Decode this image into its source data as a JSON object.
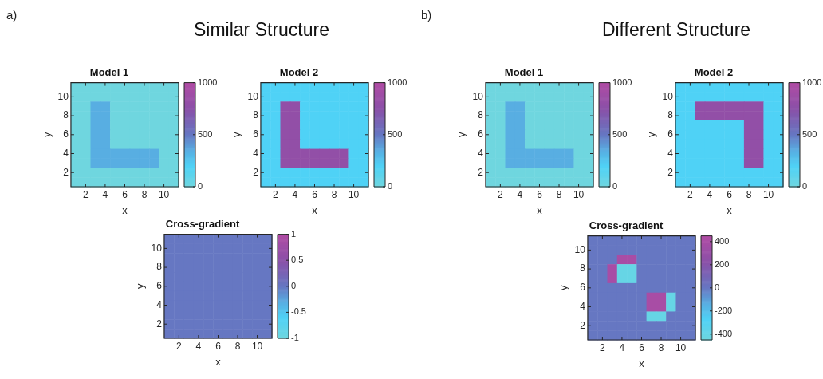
{
  "chart_data": [
    {
      "type": "heatmap",
      "title": "Model 1",
      "xlabel": "x",
      "ylabel": "y",
      "annotations": [
        "a)",
        "Similar Structure"
      ],
      "x": [
        1,
        2,
        3,
        4,
        5,
        6,
        7,
        8,
        9,
        10,
        11
      ],
      "xlim": [
        0.5,
        11.5
      ],
      "xticks": [
        2,
        4,
        6,
        8,
        10
      ],
      "ylim": [
        0.5,
        11.5
      ],
      "yticks": [
        2,
        4,
        6,
        8,
        10
      ],
      "clim": [
        0,
        1000
      ],
      "cticks": [
        0,
        500,
        1000
      ],
      "cells": [
        [
          0,
          0,
          0,
          0,
          0,
          0,
          0,
          0,
          0,
          0,
          0
        ],
        [
          0,
          0,
          0,
          0,
          0,
          0,
          0,
          0,
          0,
          0,
          0
        ],
        [
          0,
          0,
          350,
          350,
          0,
          0,
          0,
          0,
          0,
          0,
          0
        ],
        [
          0,
          0,
          350,
          350,
          0,
          0,
          0,
          0,
          0,
          0,
          0
        ],
        [
          0,
          0,
          350,
          350,
          0,
          0,
          0,
          0,
          0,
          0,
          0
        ],
        [
          0,
          0,
          350,
          350,
          0,
          0,
          0,
          0,
          0,
          0,
          0
        ],
        [
          0,
          0,
          350,
          350,
          0,
          0,
          0,
          0,
          0,
          0,
          0
        ],
        [
          0,
          0,
          350,
          350,
          350,
          350,
          350,
          350,
          350,
          0,
          0
        ],
        [
          0,
          0,
          350,
          350,
          350,
          350,
          350,
          350,
          350,
          0,
          0
        ],
        [
          0,
          0,
          0,
          0,
          0,
          0,
          0,
          0,
          0,
          0,
          0
        ],
        [
          0,
          0,
          0,
          0,
          0,
          0,
          0,
          0,
          0,
          0,
          0
        ]
      ]
    },
    {
      "type": "heatmap",
      "title": "Model 2",
      "xlabel": "x",
      "ylabel": "y",
      "x": [
        1,
        2,
        3,
        4,
        5,
        6,
        7,
        8,
        9,
        10,
        11
      ],
      "xlim": [
        0.5,
        11.5
      ],
      "xticks": [
        2,
        4,
        6,
        8,
        10
      ],
      "ylim": [
        0.5,
        11.5
      ],
      "yticks": [
        2,
        4,
        6,
        8,
        10
      ],
      "clim": [
        0,
        1000
      ],
      "cticks": [
        0,
        500,
        1000
      ],
      "cells": [
        [
          200,
          200,
          200,
          200,
          200,
          200,
          200,
          200,
          200,
          200,
          200
        ],
        [
          200,
          200,
          200,
          200,
          200,
          200,
          200,
          200,
          200,
          200,
          200
        ],
        [
          200,
          200,
          800,
          800,
          200,
          200,
          200,
          200,
          200,
          200,
          200
        ],
        [
          200,
          200,
          800,
          800,
          200,
          200,
          200,
          200,
          200,
          200,
          200
        ],
        [
          200,
          200,
          800,
          800,
          200,
          200,
          200,
          200,
          200,
          200,
          200
        ],
        [
          200,
          200,
          800,
          800,
          200,
          200,
          200,
          200,
          200,
          200,
          200
        ],
        [
          200,
          200,
          800,
          800,
          200,
          200,
          200,
          200,
          200,
          200,
          200
        ],
        [
          200,
          200,
          800,
          800,
          800,
          800,
          800,
          800,
          800,
          200,
          200
        ],
        [
          200,
          200,
          800,
          800,
          800,
          800,
          800,
          800,
          800,
          200,
          200
        ],
        [
          200,
          200,
          200,
          200,
          200,
          200,
          200,
          200,
          200,
          200,
          200
        ],
        [
          200,
          200,
          200,
          200,
          200,
          200,
          200,
          200,
          200,
          200,
          200
        ]
      ]
    },
    {
      "type": "heatmap",
      "title": "Cross-gradient",
      "xlabel": "x",
      "ylabel": "y",
      "x": [
        1,
        2,
        3,
        4,
        5,
        6,
        7,
        8,
        9,
        10,
        11
      ],
      "xlim": [
        0.5,
        11.5
      ],
      "xticks": [
        2,
        4,
        6,
        8,
        10
      ],
      "ylim": [
        0.5,
        11.5
      ],
      "yticks": [
        2,
        4,
        6,
        8,
        10
      ],
      "clim": [
        -1,
        1
      ],
      "cticks": [
        -1,
        -0.5,
        0,
        0.5,
        1
      ],
      "cells": [
        [
          0,
          0,
          0,
          0,
          0,
          0,
          0,
          0,
          0,
          0,
          0
        ],
        [
          0,
          0,
          0,
          0,
          0,
          0,
          0,
          0,
          0,
          0,
          0
        ],
        [
          0,
          0,
          0,
          0,
          0,
          0,
          0,
          0,
          0,
          0,
          0
        ],
        [
          0,
          0,
          0,
          0,
          0,
          0,
          0,
          0,
          0,
          0,
          0
        ],
        [
          0,
          0,
          0,
          0,
          0,
          0,
          0,
          0,
          0,
          0,
          0
        ],
        [
          0,
          0,
          0,
          0,
          0,
          0,
          0,
          0,
          0,
          0,
          0
        ],
        [
          0,
          0,
          0,
          0,
          0,
          0,
          0,
          0,
          0,
          0,
          0
        ],
        [
          0,
          0,
          0,
          0,
          0,
          0,
          0,
          0,
          0,
          0,
          0
        ],
        [
          0,
          0,
          0,
          0,
          0,
          0,
          0,
          0,
          0,
          0,
          0
        ],
        [
          0,
          0,
          0,
          0,
          0,
          0,
          0,
          0,
          0,
          0,
          0
        ],
        [
          0,
          0,
          0,
          0,
          0,
          0,
          0,
          0,
          0,
          0,
          0
        ]
      ]
    },
    {
      "type": "heatmap",
      "title": "Model 1",
      "xlabel": "x",
      "ylabel": "y",
      "annotations": [
        "b)",
        "Different Structure"
      ],
      "x": [
        1,
        2,
        3,
        4,
        5,
        6,
        7,
        8,
        9,
        10,
        11
      ],
      "xlim": [
        0.5,
        11.5
      ],
      "xticks": [
        2,
        4,
        6,
        8,
        10
      ],
      "ylim": [
        0.5,
        11.5
      ],
      "yticks": [
        2,
        4,
        6,
        8,
        10
      ],
      "clim": [
        0,
        1000
      ],
      "cticks": [
        0,
        500,
        1000
      ],
      "cells": [
        [
          0,
          0,
          0,
          0,
          0,
          0,
          0,
          0,
          0,
          0,
          0
        ],
        [
          0,
          0,
          0,
          0,
          0,
          0,
          0,
          0,
          0,
          0,
          0
        ],
        [
          0,
          0,
          350,
          350,
          0,
          0,
          0,
          0,
          0,
          0,
          0
        ],
        [
          0,
          0,
          350,
          350,
          0,
          0,
          0,
          0,
          0,
          0,
          0
        ],
        [
          0,
          0,
          350,
          350,
          0,
          0,
          0,
          0,
          0,
          0,
          0
        ],
        [
          0,
          0,
          350,
          350,
          0,
          0,
          0,
          0,
          0,
          0,
          0
        ],
        [
          0,
          0,
          350,
          350,
          0,
          0,
          0,
          0,
          0,
          0,
          0
        ],
        [
          0,
          0,
          350,
          350,
          350,
          350,
          350,
          350,
          350,
          0,
          0
        ],
        [
          0,
          0,
          350,
          350,
          350,
          350,
          350,
          350,
          350,
          0,
          0
        ],
        [
          0,
          0,
          0,
          0,
          0,
          0,
          0,
          0,
          0,
          0,
          0
        ],
        [
          0,
          0,
          0,
          0,
          0,
          0,
          0,
          0,
          0,
          0,
          0
        ]
      ]
    },
    {
      "type": "heatmap",
      "title": "Model 2",
      "xlabel": "x",
      "ylabel": "y",
      "x": [
        1,
        2,
        3,
        4,
        5,
        6,
        7,
        8,
        9,
        10,
        11
      ],
      "xlim": [
        0.5,
        11.5
      ],
      "xticks": [
        2,
        4,
        6,
        8,
        10
      ],
      "ylim": [
        0.5,
        11.5
      ],
      "yticks": [
        2,
        4,
        6,
        8,
        10
      ],
      "clim": [
        0,
        1000
      ],
      "cticks": [
        0,
        500,
        1000
      ],
      "cells": [
        [
          200,
          200,
          200,
          200,
          200,
          200,
          200,
          200,
          200,
          200,
          200
        ],
        [
          200,
          200,
          200,
          200,
          200,
          200,
          200,
          200,
          200,
          200,
          200
        ],
        [
          200,
          200,
          800,
          800,
          800,
          800,
          800,
          800,
          800,
          200,
          200
        ],
        [
          200,
          200,
          800,
          800,
          800,
          800,
          800,
          800,
          800,
          200,
          200
        ],
        [
          200,
          200,
          200,
          200,
          200,
          200,
          200,
          800,
          800,
          200,
          200
        ],
        [
          200,
          200,
          200,
          200,
          200,
          200,
          200,
          800,
          800,
          200,
          200
        ],
        [
          200,
          200,
          200,
          200,
          200,
          200,
          200,
          800,
          800,
          200,
          200
        ],
        [
          200,
          200,
          200,
          200,
          200,
          200,
          200,
          800,
          800,
          200,
          200
        ],
        [
          200,
          200,
          200,
          200,
          200,
          200,
          200,
          800,
          800,
          200,
          200
        ],
        [
          200,
          200,
          200,
          200,
          200,
          200,
          200,
          200,
          200,
          200,
          200
        ],
        [
          200,
          200,
          200,
          200,
          200,
          200,
          200,
          200,
          200,
          200,
          200
        ]
      ]
    },
    {
      "type": "heatmap",
      "title": "Cross-gradient",
      "xlabel": "x",
      "ylabel": "y",
      "x": [
        1,
        2,
        3,
        4,
        5,
        6,
        7,
        8,
        9,
        10,
        11
      ],
      "xlim": [
        0.5,
        11.5
      ],
      "xticks": [
        2,
        4,
        6,
        8,
        10
      ],
      "ylim": [
        0.5,
        11.5
      ],
      "yticks": [
        2,
        4,
        6,
        8,
        10
      ],
      "clim": [
        -450,
        450
      ],
      "cticks": [
        -400,
        -200,
        0,
        200,
        400
      ],
      "cells": [
        [
          0,
          0,
          0,
          0,
          0,
          0,
          0,
          0,
          0,
          0,
          0
        ],
        [
          0,
          0,
          0,
          0,
          0,
          0,
          0,
          0,
          0,
          0,
          0
        ],
        [
          0,
          0,
          0,
          400,
          400,
          0,
          0,
          0,
          0,
          0,
          0
        ],
        [
          0,
          0,
          400,
          -400,
          -400,
          0,
          0,
          0,
          0,
          0,
          0
        ],
        [
          0,
          0,
          400,
          -400,
          -400,
          0,
          0,
          0,
          0,
          0,
          0
        ],
        [
          0,
          0,
          0,
          0,
          0,
          0,
          0,
          0,
          0,
          0,
          0
        ],
        [
          0,
          0,
          0,
          0,
          0,
          0,
          400,
          400,
          -400,
          0,
          0
        ],
        [
          0,
          0,
          0,
          0,
          0,
          0,
          400,
          400,
          -400,
          0,
          0
        ],
        [
          0,
          0,
          0,
          0,
          0,
          0,
          -400,
          -400,
          0,
          0,
          0
        ],
        [
          0,
          0,
          0,
          0,
          0,
          0,
          0,
          0,
          0,
          0,
          0
        ],
        [
          0,
          0,
          0,
          0,
          0,
          0,
          0,
          0,
          0,
          0,
          0
        ]
      ]
    }
  ]
}
